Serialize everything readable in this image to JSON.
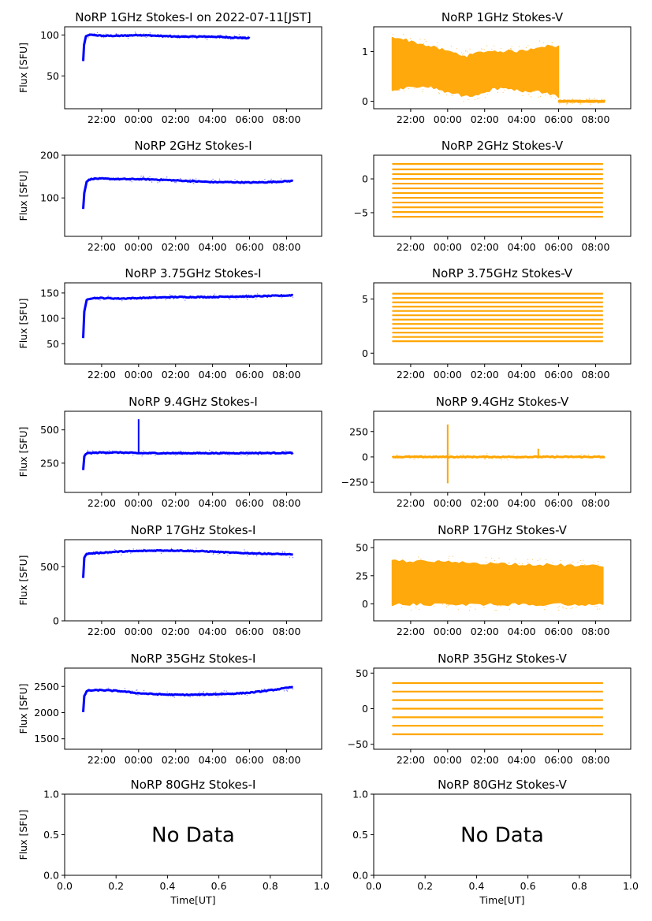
{
  "xtick_labels": [
    "22:00",
    "00:00",
    "02:00",
    "04:00",
    "06:00",
    "08:00"
  ],
  "xlabel_bottom": "Time[UT]",
  "ylabel": "Flux [SFU]",
  "nodata_text": "No Data",
  "colors": {
    "stokes_i": "#0000ff",
    "stokes_v": "#ffa500"
  },
  "chart_data": [
    {
      "id": "i1",
      "type": "scatter",
      "title": "NoRP 1GHz Stokes-I on 2022-07-11[JST]",
      "ylim": [
        10,
        110
      ],
      "yticks": [
        50,
        100
      ],
      "series": [
        {
          "x": [
            0,
            0.05,
            0.15,
            0.3,
            0.6,
            1,
            2,
            3,
            4,
            5,
            6,
            7,
            8,
            9
          ],
          "y": [
            68,
            88,
            98,
            100,
            100,
            99,
            99,
            100,
            99,
            98,
            98,
            98,
            97,
            96
          ]
        }
      ]
    },
    {
      "id": "v1",
      "type": "scatter",
      "title": "NoRP 1GHz Stokes-V",
      "ylim": [
        -0.15,
        1.5
      ],
      "yticks": [
        0,
        1
      ],
      "band": [
        {
          "x": [
            0,
            1,
            2,
            3,
            4,
            5,
            6,
            7,
            8,
            9
          ],
          "low": [
            0.2,
            0.3,
            0.3,
            0.2,
            0.1,
            0.2,
            0.3,
            0.2,
            0.2,
            0.1
          ],
          "high": [
            1.3,
            1.2,
            1.1,
            1.0,
            0.9,
            1.0,
            1.0,
            1.0,
            1.1,
            1.1
          ]
        }
      ],
      "series": [
        {
          "x": [
            9,
            11.5
          ],
          "y": [
            0,
            0
          ]
        }
      ]
    },
    {
      "id": "i2",
      "type": "scatter",
      "title": "NoRP 2GHz Stokes-I",
      "ylim": [
        10,
        200
      ],
      "yticks": [
        100,
        200
      ],
      "series": [
        {
          "x": [
            0,
            0.05,
            0.2,
            0.5,
            1,
            2,
            3,
            4,
            5,
            6,
            7,
            8,
            9,
            10,
            11,
            11.35
          ],
          "y": [
            75,
            110,
            140,
            145,
            145,
            144,
            144,
            143,
            141,
            139,
            137,
            137,
            136,
            137,
            139,
            140
          ]
        }
      ]
    },
    {
      "id": "v2",
      "type": "scatter",
      "title": "NoRP 2GHz Stokes-V",
      "ylim": [
        -8.5,
        3.5
      ],
      "yticks": [
        -5,
        0
      ],
      "levels": [
        2.2,
        1.4,
        0.7,
        0,
        -0.7,
        -1.4,
        -2.1,
        -2.8,
        -3.5,
        -4.2,
        -4.9,
        -5.6
      ]
    },
    {
      "id": "i3",
      "type": "scatter",
      "title": "NoRP 3.75GHz Stokes-I",
      "ylim": [
        10,
        170
      ],
      "yticks": [
        50,
        100,
        150
      ],
      "series": [
        {
          "x": [
            0,
            0.05,
            0.2,
            0.5,
            1,
            2,
            3,
            4,
            5,
            6,
            7,
            8,
            9,
            10,
            11,
            11.35
          ],
          "y": [
            60,
            110,
            138,
            140,
            140,
            139,
            140,
            141,
            142,
            142,
            142,
            143,
            143,
            144,
            145,
            146
          ]
        }
      ]
    },
    {
      "id": "v3",
      "type": "scatter",
      "title": "NoRP 3.75GHz Stokes-V",
      "ylim": [
        -1,
        6.5
      ],
      "yticks": [
        0,
        5
      ],
      "levels": [
        5.5,
        5.1,
        4.7,
        4.3,
        3.9,
        3.5,
        3.1,
        2.7,
        2.3,
        1.9,
        1.5,
        1.1
      ]
    },
    {
      "id": "i4",
      "type": "scatter",
      "title": "NoRP 9.4GHz Stokes-I",
      "ylim": [
        30,
        640
      ],
      "yticks": [
        250,
        500
      ],
      "series": [
        {
          "x": [
            0,
            0.05,
            0.2,
            1,
            2,
            3,
            4,
            5,
            6,
            7,
            8,
            9,
            10,
            11,
            11.35
          ],
          "y": [
            200,
            300,
            325,
            330,
            330,
            325,
            325,
            325,
            325,
            325,
            325,
            326,
            326,
            327,
            327
          ]
        }
      ],
      "spikes": [
        {
          "x": 3.0,
          "y": 580
        }
      ]
    },
    {
      "id": "v4",
      "type": "scatter",
      "title": "NoRP 9.4GHz Stokes-V",
      "ylim": [
        -350,
        450
      ],
      "yticks": [
        -250,
        0,
        250
      ],
      "series": [
        {
          "x": [
            0,
            11.5
          ],
          "y": [
            0,
            0
          ]
        }
      ],
      "spikes": [
        {
          "x": 3.0,
          "y": 320
        },
        {
          "x": 3.0,
          "y": -260
        },
        {
          "x": 7.9,
          "y": 80
        }
      ]
    },
    {
      "id": "i5",
      "type": "scatter",
      "title": "NoRP 17GHz Stokes-I",
      "ylim": [
        0,
        750
      ],
      "yticks": [
        0,
        500
      ],
      "series": [
        {
          "x": [
            0,
            0.05,
            0.2,
            1,
            2,
            3,
            4,
            5,
            6,
            7,
            8,
            9,
            10,
            11,
            11.35
          ],
          "y": [
            400,
            580,
            620,
            630,
            640,
            645,
            650,
            650,
            645,
            640,
            630,
            625,
            620,
            615,
            610
          ]
        }
      ]
    },
    {
      "id": "v5",
      "type": "scatter",
      "title": "NoRP 17GHz Stokes-V",
      "ylim": [
        -15,
        57
      ],
      "yticks": [
        0,
        25,
        50
      ],
      "band": [
        {
          "x": [
            0,
            11.4
          ],
          "low": [
            0,
            0
          ],
          "high": [
            38,
            33
          ]
        }
      ]
    },
    {
      "id": "i6",
      "type": "scatter",
      "title": "NoRP 35GHz Stokes-I",
      "ylim": [
        1300,
        2850
      ],
      "yticks": [
        1500,
        2000,
        2500
      ],
      "series": [
        {
          "x": [
            0,
            0.05,
            0.2,
            1,
            2,
            3,
            4,
            5,
            6,
            7,
            8,
            9,
            10,
            11,
            11.35
          ],
          "y": [
            2000,
            2300,
            2420,
            2430,
            2410,
            2370,
            2350,
            2340,
            2340,
            2350,
            2360,
            2380,
            2420,
            2470,
            2490
          ]
        }
      ]
    },
    {
      "id": "v6",
      "type": "scatter",
      "title": "NoRP 35GHz Stokes-V",
      "ylim": [
        -57,
        57
      ],
      "yticks": [
        -50,
        0,
        50
      ],
      "levels": [
        36,
        24,
        12,
        0,
        -12,
        -24,
        -36
      ]
    },
    {
      "id": "i7",
      "type": "scatter",
      "title": "NoRP 80GHz Stokes-I",
      "xlim": [
        0,
        1
      ],
      "ylim": [
        0,
        1
      ],
      "xticks": [
        0.0,
        0.2,
        0.4,
        0.6,
        0.8,
        1.0
      ],
      "yticks": [
        0.0,
        0.5,
        1.0
      ],
      "series": []
    },
    {
      "id": "v7",
      "type": "scatter",
      "title": "NoRP 80GHz Stokes-V",
      "xlim": [
        0,
        1
      ],
      "ylim": [
        0,
        1
      ],
      "xticks": [
        0.0,
        0.2,
        0.4,
        0.6,
        0.8,
        1.0
      ],
      "yticks": [
        0.0,
        0.5,
        1.0
      ],
      "series": []
    }
  ]
}
